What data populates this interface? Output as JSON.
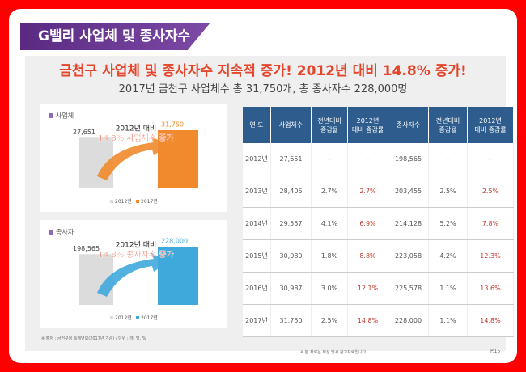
{
  "header": {
    "title": "G밸리 사업체 및 종사자수",
    "headline": "금천구 사업체 및 종사자수 지속적 증가! 2012년 대비 14.8% 증가!",
    "subtitle": "2017년 금천구 사업체수 총 31,750개, 총 종사자수 228,000명"
  },
  "chart_data": [
    {
      "type": "bar",
      "legend_title": "사업체",
      "annotation": [
        "2012년 대비",
        "14.8% 사업체수 증가"
      ],
      "categories": [
        "2012년",
        "2017년"
      ],
      "values": [
        27651,
        31750
      ],
      "value_labels": [
        "27,651",
        "31,750"
      ],
      "colors": [
        "#dcdcdc",
        "#f08a2c"
      ]
    },
    {
      "type": "bar",
      "legend_title": "종사자",
      "annotation": [
        "2012년 대비",
        "14.8% 종사자수 증가"
      ],
      "categories": [
        "2012년",
        "2017년"
      ],
      "values": [
        198565,
        228000
      ],
      "value_labels": [
        "198,565",
        "228,000"
      ],
      "colors": [
        "#dcdcdc",
        "#3fa9dc"
      ]
    }
  ],
  "table": {
    "columns": [
      "연 도",
      "사업체수",
      "전년대비\n증감율",
      "2012년\n대비 증감률",
      "종사자수",
      "전년대비\n증감율",
      "2012년\n대비 증감률"
    ],
    "rows": [
      [
        "2012년",
        "27,651",
        "–",
        "–",
        "198,565",
        "–",
        "–"
      ],
      [
        "2013년",
        "28,406",
        "2.7%",
        "2.7%",
        "203,455",
        "2.5%",
        "2.5%"
      ],
      [
        "2014년",
        "29,557",
        "4.1%",
        "6.9%",
        "214,128",
        "5.2%",
        "7.8%"
      ],
      [
        "2015년",
        "30,080",
        "1.8%",
        "8.8%",
        "223,058",
        "4.2%",
        "12.3%"
      ],
      [
        "2016년",
        "30,987",
        "3.0%",
        "12.1%",
        "225,578",
        "1.1%",
        "13.6%"
      ],
      [
        "2017년",
        "31,750",
        "2.5%",
        "14.8%",
        "228,000",
        "1.1%",
        "14.8%"
      ]
    ]
  },
  "footer": {
    "source": "※ 출처 : 금천구청 통계연보(2017년 기준) / 단위 : 개, 명, %",
    "note": "※ 본 자료는 작성 당시 참고자료입니다.",
    "page": "P.15"
  }
}
